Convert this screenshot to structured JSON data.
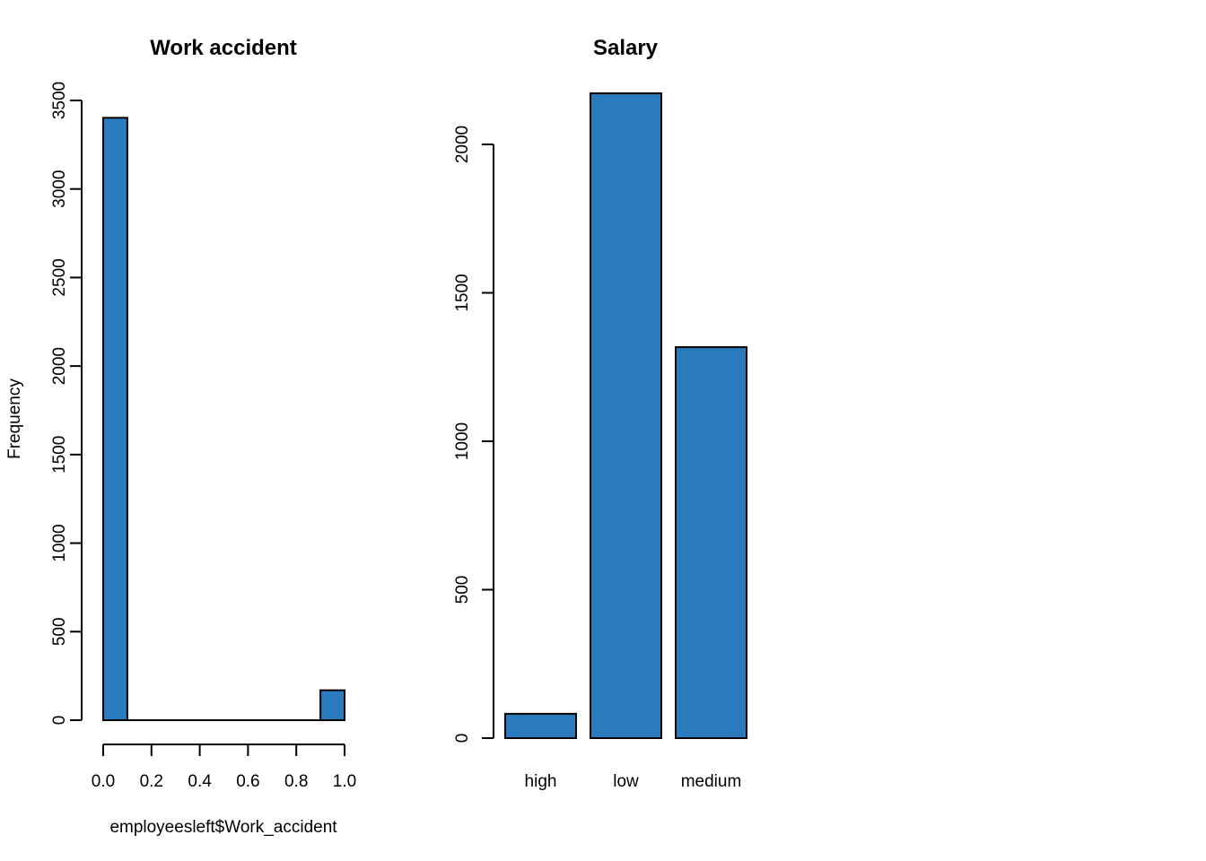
{
  "chart_data": [
    {
      "type": "bar",
      "variant": "histogram",
      "title": "Work accident",
      "xlabel": "employeesleft$Work_accident",
      "ylabel": "Frequency",
      "bins": [
        {
          "from": 0.0,
          "to": 0.1,
          "count": 3402
        },
        {
          "from": 0.1,
          "to": 0.2,
          "count": 0
        },
        {
          "from": 0.2,
          "to": 0.3,
          "count": 0
        },
        {
          "from": 0.3,
          "to": 0.4,
          "count": 0
        },
        {
          "from": 0.4,
          "to": 0.5,
          "count": 0
        },
        {
          "from": 0.5,
          "to": 0.6,
          "count": 0
        },
        {
          "from": 0.6,
          "to": 0.7,
          "count": 0
        },
        {
          "from": 0.7,
          "to": 0.8,
          "count": 0
        },
        {
          "from": 0.8,
          "to": 0.9,
          "count": 0
        },
        {
          "from": 0.9,
          "to": 1.0,
          "count": 169
        }
      ],
      "xticks": [
        "0.0",
        "0.2",
        "0.4",
        "0.6",
        "0.8",
        "1.0"
      ],
      "xtick_values": [
        0,
        0.2,
        0.4,
        0.6,
        0.8,
        1.0
      ],
      "yticks": [
        "0",
        "500",
        "1000",
        "1500",
        "2000",
        "2500",
        "3000",
        "3500"
      ],
      "ytick_values": [
        0,
        500,
        1000,
        1500,
        2000,
        2500,
        3000,
        3500
      ],
      "xlim": [
        0,
        1
      ],
      "ylim": [
        0,
        3500
      ],
      "color": "#2a7bbe",
      "grid": false
    },
    {
      "type": "bar",
      "title": "Salary",
      "xlabel": "",
      "ylabel": "",
      "categories": [
        "high",
        "low",
        "medium"
      ],
      "values": [
        82,
        2172,
        1317
      ],
      "yticks": [
        "0",
        "500",
        "1000",
        "1500",
        "2000"
      ],
      "ytick_values": [
        0,
        500,
        1000,
        1500,
        2000
      ],
      "ylim": [
        0,
        2000
      ],
      "color": "#2a7bbe",
      "grid": false
    }
  ]
}
